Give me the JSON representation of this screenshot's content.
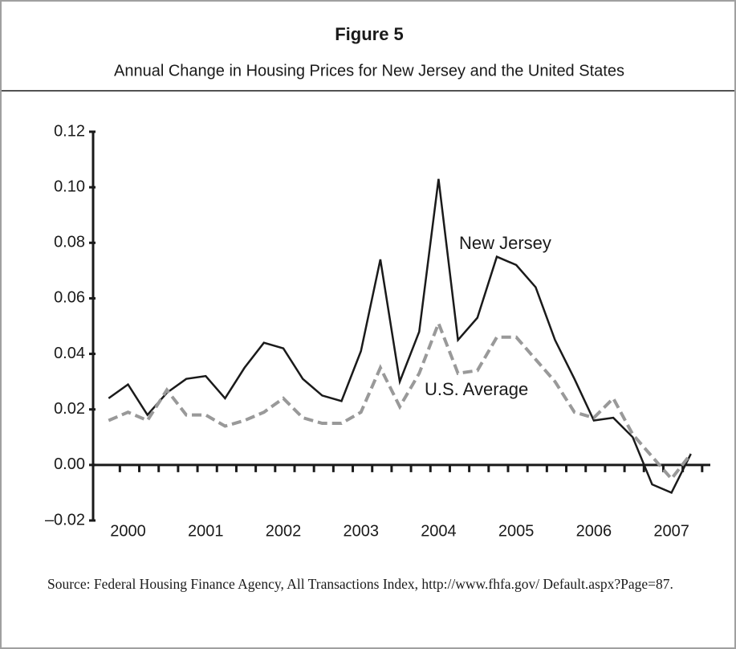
{
  "chart_data": {
    "type": "line",
    "title": "Figure 5",
    "subtitle": "Annual Change in Housing Prices for New Jersey and the United States",
    "source": "Source: Federal Housing Finance Agency, All Transactions Index, http://www.fhfa.gov/ Default.aspx?Page=87.",
    "x": [
      1999.75,
      2000.0,
      2000.25,
      2000.5,
      2000.75,
      2001.0,
      2001.25,
      2001.5,
      2001.75,
      2002.0,
      2002.25,
      2002.5,
      2002.75,
      2003.0,
      2003.25,
      2003.5,
      2003.75,
      2004.0,
      2004.25,
      2004.5,
      2004.75,
      2005.0,
      2005.25,
      2005.5,
      2005.75,
      2006.0,
      2006.25,
      2006.5,
      2006.75,
      2007.0,
      2007.25
    ],
    "series": [
      {
        "name": "New Jersey",
        "color": "#1a1a1a",
        "dashed": false,
        "values": [
          0.024,
          0.029,
          0.018,
          0.026,
          0.031,
          0.032,
          0.024,
          0.035,
          0.044,
          0.042,
          0.031,
          0.025,
          0.023,
          0.041,
          0.074,
          0.03,
          0.048,
          0.103,
          0.045,
          0.053,
          0.075,
          0.072,
          0.064,
          0.045,
          0.031,
          0.016,
          0.017,
          0.01,
          -0.007,
          -0.01,
          0.004
        ]
      },
      {
        "name": "U.S. Average",
        "color": "#999999",
        "dashed": true,
        "values": [
          0.016,
          0.019,
          0.016,
          0.027,
          0.018,
          0.018,
          0.014,
          0.016,
          0.019,
          0.024,
          0.017,
          0.015,
          0.015,
          0.019,
          0.035,
          0.021,
          0.033,
          0.051,
          0.033,
          0.034,
          0.046,
          0.046,
          0.038,
          0.03,
          0.019,
          0.017,
          0.024,
          0.011,
          0.003,
          -0.005,
          0.004
        ]
      }
    ],
    "xlim": [
      1999.55,
      2007.5
    ],
    "xticks": [
      2000,
      2001,
      2002,
      2003,
      2004,
      2005,
      2006,
      2007
    ],
    "ylim": [
      -0.02,
      0.12
    ],
    "yticks": [
      {
        "value": -0.02,
        "label": "–0.02"
      },
      {
        "value": 0,
        "label": "0.00"
      },
      {
        "value": 0.02,
        "label": "0.02"
      },
      {
        "value": 0.04,
        "label": "0.04"
      },
      {
        "value": 0.06,
        "label": "0.06"
      },
      {
        "value": 0.08,
        "label": "0.08"
      },
      {
        "value": 0.1,
        "label": "0.10"
      },
      {
        "value": 0.12,
        "label": "0.12"
      }
    ],
    "grid": false
  }
}
